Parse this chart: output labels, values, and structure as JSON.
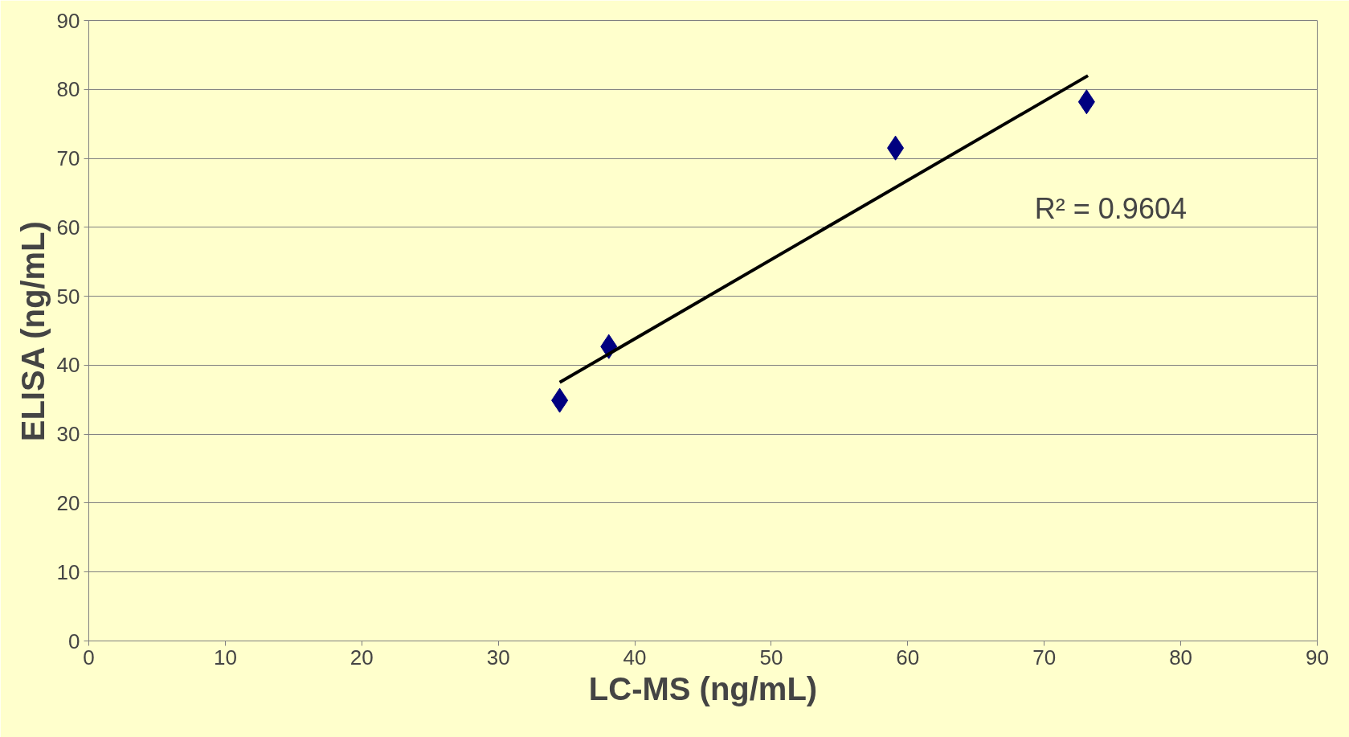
{
  "chart_data": {
    "type": "scatter",
    "xlabel": "LC-MS (ng/mL)",
    "ylabel": "ELISA (ng/mL)",
    "grid": "y",
    "xlim": [
      0,
      90
    ],
    "xticks": [
      0,
      10,
      20,
      30,
      40,
      50,
      60,
      70,
      80,
      90
    ],
    "ylim": [
      0,
      90
    ],
    "yticks": [
      0,
      10,
      20,
      30,
      40,
      50,
      60,
      70,
      80,
      90
    ],
    "series": [
      {
        "color": "#000080",
        "marker": "diamond",
        "x": [
          34.5,
          38.1,
          59.1,
          73.1
        ],
        "values": [
          34.9,
          42.7,
          71.5,
          78.2
        ]
      },
      {
        "type": "line",
        "color": "#000000",
        "marker": "none",
        "x": [
          34.5,
          73.2
        ],
        "values": [
          37.5,
          82.0
        ]
      }
    ],
    "annotations": [
      "R² = 0.9604"
    ]
  }
}
